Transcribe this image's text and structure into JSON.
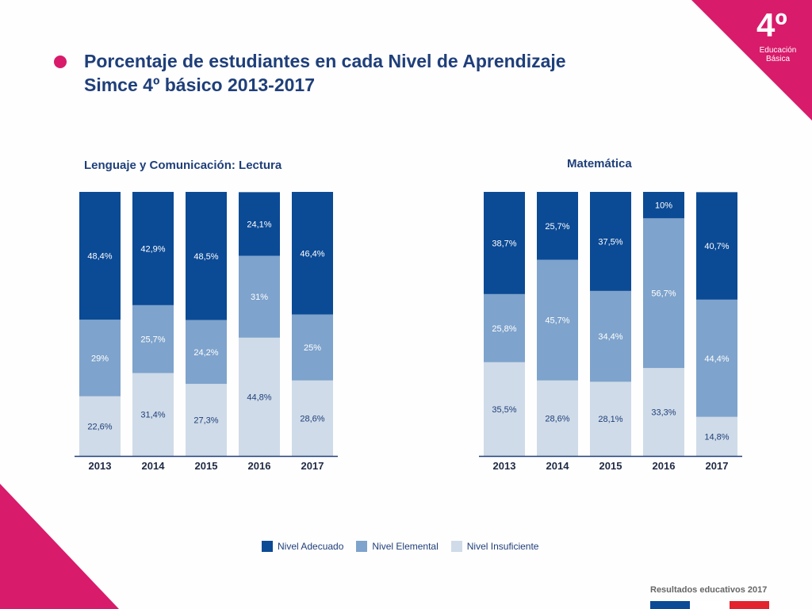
{
  "header": {
    "title_line1": "Porcentaje de estudiantes en cada Nivel de Aprendizaje",
    "title_line2": "Simce 4º básico 2013-2017"
  },
  "badge": {
    "number": "4º",
    "line1": "Educación",
    "line2": "Básica"
  },
  "colors": {
    "adecuado": "#0b4a95",
    "elemental": "#7ea3cc",
    "insuficiente": "#cfdbe8",
    "accent": "#d81b6b"
  },
  "legend": [
    "Nivel Adecuado",
    "Nivel Elemental",
    "Nivel Insuficiente"
  ],
  "footer": "Resultados educativos 2017",
  "chart_data": [
    {
      "type": "bar",
      "stacked": true,
      "title": "Lenguaje y Comunicación: Lectura",
      "categories": [
        "2013",
        "2014",
        "2015",
        "2016",
        "2017"
      ],
      "series": [
        {
          "name": "Nivel Insuficiente",
          "values": [
            22.6,
            31.4,
            27.3,
            44.8,
            28.6
          ],
          "labels": [
            "22,6%",
            "31,4%",
            "27,3%",
            "44,8%",
            "28,6%"
          ]
        },
        {
          "name": "Nivel Elemental",
          "values": [
            29,
            25.7,
            24.2,
            31,
            25
          ],
          "labels": [
            "29%",
            "25,7%",
            "24,2%",
            "31%",
            "25%"
          ]
        },
        {
          "name": "Nivel Adecuado",
          "values": [
            48.4,
            42.9,
            48.5,
            24.1,
            46.4
          ],
          "labels": [
            "48,4%",
            "42,9%",
            "48,5%",
            "24,1%",
            "46,4%"
          ]
        }
      ],
      "ylim": [
        0,
        100
      ]
    },
    {
      "type": "bar",
      "stacked": true,
      "title": "Matemática",
      "categories": [
        "2013",
        "2014",
        "2015",
        "2016",
        "2017"
      ],
      "series": [
        {
          "name": "Nivel Insuficiente",
          "values": [
            35.5,
            28.6,
            28.1,
            33.3,
            14.8
          ],
          "labels": [
            "35,5%",
            "28,6%",
            "28,1%",
            "33,3%",
            "14,8%"
          ]
        },
        {
          "name": "Nivel Elemental",
          "values": [
            25.8,
            45.7,
            34.4,
            56.7,
            44.4
          ],
          "labels": [
            "25,8%",
            "45,7%",
            "34,4%",
            "56,7%",
            "44,4%"
          ]
        },
        {
          "name": "Nivel Adecuado",
          "values": [
            38.7,
            25.7,
            37.5,
            10,
            40.7
          ],
          "labels": [
            "38,7%",
            "25,7%",
            "37,5%",
            "10%",
            "40,7%"
          ]
        }
      ],
      "ylim": [
        0,
        100
      ]
    }
  ]
}
